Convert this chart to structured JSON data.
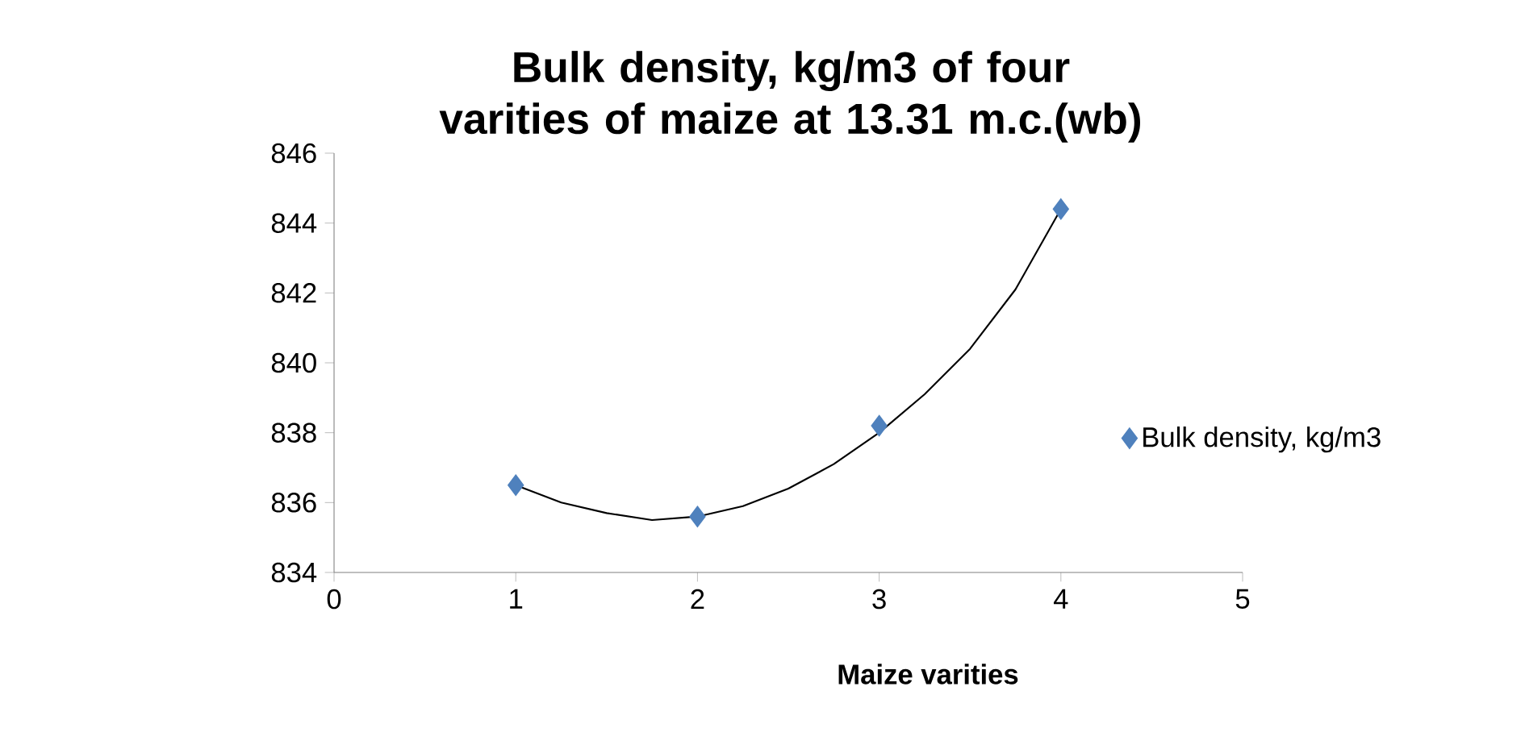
{
  "chart_data": {
    "type": "scatter",
    "title": "Bulk density, kg/m3 of four varities of maize at 13.31 m.c.(wb)",
    "xlabel": "Maize varities",
    "x": [
      1,
      2,
      3,
      4
    ],
    "series": [
      {
        "name": "Bulk density, kg/m3",
        "color": "#4f81bd",
        "values": [
          836.5,
          835.6,
          838.2,
          844.4
        ]
      },
      {
        "type": "line",
        "color": "#000000",
        "marker": "none",
        "x": [
          1,
          1.25,
          1.5,
          1.75,
          2,
          2.25,
          2.5,
          2.75,
          3,
          3.25,
          3.5,
          3.75,
          4
        ],
        "values": [
          836.5,
          836.0,
          835.7,
          835.5,
          835.6,
          835.9,
          836.4,
          837.1,
          838.0,
          839.1,
          840.4,
          842.1,
          844.4
        ]
      }
    ],
    "xlim": [
      0,
      5
    ],
    "xticks": [
      0,
      1,
      2,
      3,
      4,
      5
    ],
    "ylim": [
      834,
      846
    ],
    "yticks": [
      834,
      836,
      838,
      840,
      842,
      844,
      846
    ],
    "marker": "diamond",
    "grid": false,
    "legend": "right"
  }
}
